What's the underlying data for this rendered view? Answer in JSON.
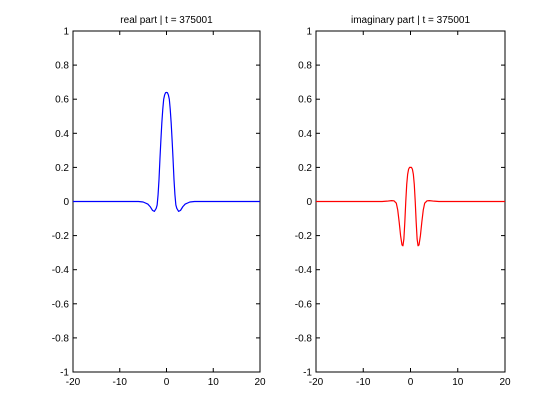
{
  "chart_data": [
    {
      "type": "line",
      "title": "real part | t = 375001",
      "xlabel": "",
      "ylabel": "",
      "xlim": [
        -20,
        20
      ],
      "ylim": [
        -1,
        1
      ],
      "xticks": [
        -20,
        -10,
        0,
        10,
        20
      ],
      "yticks": [
        1,
        0.8,
        0.6,
        0.4,
        0.2,
        0,
        -0.2,
        -0.4,
        -0.6,
        -0.8,
        -1
      ],
      "xtick_labels": [
        "-20",
        "-10",
        "0",
        "10",
        "20"
      ],
      "ytick_labels": [
        "1",
        "0.8",
        "0.6",
        "0.4",
        "0.2",
        "0",
        "-0.2",
        "-0.4",
        "-0.6",
        "-0.8",
        "-1"
      ],
      "grid": false,
      "series": [
        {
          "color": "#0000ff",
          "x": [
            -20,
            -8,
            -6,
            -5,
            -4,
            -3.5,
            -3,
            -2.6,
            -2.2,
            -2,
            -1.8,
            -1.6,
            -1.4,
            -1.2,
            -1,
            -0.8,
            -0.6,
            -0.4,
            -0.2,
            0,
            0.2,
            0.4,
            0.6,
            0.8,
            1,
            1.2,
            1.4,
            1.6,
            1.8,
            2,
            2.2,
            2.6,
            3,
            3.5,
            4,
            5,
            6,
            8,
            20
          ],
          "y": [
            0,
            0,
            0,
            -0.003,
            -0.015,
            -0.03,
            -0.052,
            -0.058,
            -0.04,
            -0.02,
            0.04,
            0.13,
            0.25,
            0.36,
            0.46,
            0.54,
            0.6,
            0.625,
            0.638,
            0.64,
            0.638,
            0.625,
            0.6,
            0.54,
            0.46,
            0.36,
            0.25,
            0.13,
            0.04,
            -0.02,
            -0.04,
            -0.058,
            -0.052,
            -0.03,
            -0.015,
            -0.003,
            0,
            0,
            0
          ]
        }
      ]
    },
    {
      "type": "line",
      "title": "imaginary part | t = 375001",
      "xlabel": "",
      "ylabel": "",
      "xlim": [
        -20,
        20
      ],
      "ylim": [
        -1,
        1
      ],
      "xticks": [
        -20,
        -10,
        0,
        10,
        20
      ],
      "yticks": [
        1,
        0.8,
        0.6,
        0.4,
        0.2,
        0,
        -0.2,
        -0.4,
        -0.6,
        -0.8,
        -1
      ],
      "xtick_labels": [
        "-20",
        "-10",
        "0",
        "10",
        "20"
      ],
      "ytick_labels": [
        "1",
        "0.8",
        "0.6",
        "0.4",
        "0.2",
        "0",
        "-0.2",
        "-0.4",
        "-0.6",
        "-0.8",
        "-1"
      ],
      "grid": false,
      "series": [
        {
          "color": "#ff0000",
          "x": [
            -20,
            -8,
            -6,
            -5,
            -4,
            -3.5,
            -3,
            -2.7,
            -2.4,
            -2.1,
            -1.8,
            -1.6,
            -1.4,
            -1.2,
            -1,
            -0.8,
            -0.6,
            -0.4,
            -0.2,
            0,
            0.2,
            0.4,
            0.6,
            0.8,
            1,
            1.2,
            1.4,
            1.6,
            1.8,
            2.1,
            2.4,
            2.7,
            3,
            3.5,
            4,
            5,
            6,
            8,
            20
          ],
          "y": [
            0,
            0,
            0,
            0.002,
            0.005,
            0.004,
            -0.01,
            -0.05,
            -0.12,
            -0.2,
            -0.255,
            -0.26,
            -0.22,
            -0.12,
            0,
            0.1,
            0.16,
            0.19,
            0.2,
            0.2,
            0.2,
            0.19,
            0.16,
            0.1,
            0,
            -0.12,
            -0.22,
            -0.26,
            -0.255,
            -0.2,
            -0.12,
            -0.05,
            -0.01,
            0.004,
            0.005,
            0.002,
            0,
            0,
            0
          ]
        }
      ]
    }
  ]
}
